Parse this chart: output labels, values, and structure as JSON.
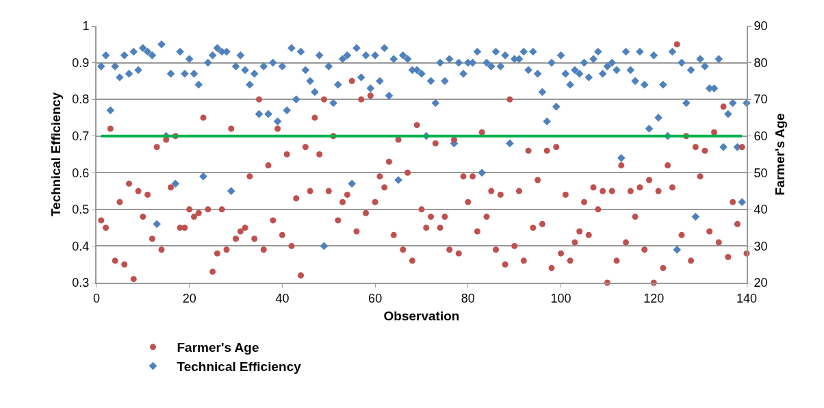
{
  "chart_data": {
    "type": "scatter",
    "xlabel": "Observation",
    "ylabel": "Technical Efficiency",
    "y2label": "Farmer's Age",
    "x": [
      1,
      2,
      3,
      4,
      5,
      6,
      7,
      8,
      9,
      10,
      11,
      12,
      13,
      14,
      15,
      16,
      17,
      18,
      19,
      20,
      21,
      22,
      23,
      24,
      25,
      26,
      27,
      28,
      29,
      30,
      31,
      32,
      33,
      34,
      35,
      36,
      37,
      38,
      39,
      40,
      41,
      42,
      43,
      44,
      45,
      46,
      47,
      48,
      49,
      50,
      51,
      52,
      53,
      54,
      55,
      56,
      57,
      58,
      59,
      60,
      61,
      62,
      63,
      64,
      65,
      66,
      67,
      68,
      69,
      70,
      71,
      72,
      73,
      74,
      75,
      76,
      77,
      78,
      79,
      80,
      81,
      82,
      83,
      84,
      85,
      86,
      87,
      88,
      89,
      90,
      91,
      92,
      93,
      94,
      95,
      96,
      97,
      98,
      99,
      100,
      101,
      102,
      103,
      104,
      105,
      106,
      107,
      108,
      109,
      110,
      111,
      112,
      113,
      114,
      115,
      116,
      117,
      118,
      119,
      120,
      121,
      122,
      123,
      124,
      125,
      126,
      127,
      128,
      129,
      130,
      131,
      132,
      133,
      134,
      135,
      136,
      137,
      138,
      139,
      140
    ],
    "series": [
      {
        "name": "Farmer's Age",
        "color": "#c0504d",
        "marker": "circle",
        "axis": "y2",
        "values": [
          37,
          35,
          62,
          26,
          42,
          25,
          47,
          21,
          45,
          38,
          44,
          32,
          57,
          29,
          59,
          46,
          60,
          35,
          35,
          40,
          38,
          39,
          65,
          40,
          23,
          28,
          40,
          29,
          62,
          32,
          34,
          35,
          49,
          32,
          70,
          29,
          52,
          37,
          62,
          33,
          55,
          30,
          43,
          22,
          57,
          45,
          65,
          55,
          70,
          45,
          60,
          37,
          42,
          44,
          75,
          34,
          70,
          39,
          71,
          42,
          49,
          46,
          53,
          33,
          59,
          29,
          50,
          26,
          63,
          40,
          35,
          38,
          58,
          35,
          38,
          29,
          59,
          28,
          49,
          42,
          49,
          34,
          61,
          38,
          45,
          29,
          44,
          25,
          70,
          30,
          45,
          26,
          56,
          35,
          48,
          36,
          56,
          24,
          57,
          28,
          44,
          26,
          31,
          34,
          42,
          33,
          46,
          40,
          45,
          20,
          45,
          26,
          52,
          31,
          45,
          38,
          46,
          29,
          48,
          20,
          45,
          24,
          52,
          46,
          85,
          33,
          60,
          26,
          57,
          49,
          56,
          34,
          61,
          31,
          68,
          27,
          42,
          36,
          57,
          28
        ]
      },
      {
        "name": "Technical Efficiency",
        "color": "#4f81bd",
        "marker": "diamond",
        "values": [
          0.89,
          0.92,
          0.77,
          0.89,
          0.86,
          0.92,
          0.87,
          0.93,
          0.88,
          0.94,
          0.93,
          0.92,
          0.46,
          0.95,
          0.7,
          0.87,
          0.57,
          0.93,
          0.87,
          0.91,
          0.87,
          0.84,
          0.59,
          0.9,
          0.92,
          0.94,
          0.93,
          0.93,
          0.55,
          0.89,
          0.92,
          0.88,
          0.84,
          0.87,
          0.76,
          0.89,
          0.76,
          0.9,
          0.74,
          0.89,
          0.77,
          0.94,
          0.8,
          0.93,
          0.88,
          0.85,
          0.82,
          0.92,
          0.4,
          0.89,
          0.79,
          0.84,
          0.91,
          0.92,
          0.57,
          0.94,
          0.86,
          0.92,
          0.83,
          0.92,
          0.85,
          0.94,
          0.81,
          0.91,
          0.58,
          0.92,
          0.91,
          0.88,
          0.88,
          0.87,
          0.7,
          0.85,
          0.79,
          0.9,
          0.85,
          0.91,
          0.68,
          0.9,
          0.87,
          0.9,
          0.9,
          0.93,
          0.6,
          0.9,
          0.89,
          0.93,
          0.89,
          0.92,
          0.68,
          0.91,
          0.91,
          0.93,
          0.88,
          0.93,
          0.87,
          0.82,
          0.74,
          0.9,
          0.78,
          0.92,
          0.87,
          0.84,
          0.88,
          0.87,
          0.9,
          0.86,
          0.91,
          0.93,
          0.87,
          0.89,
          0.9,
          0.88,
          0.64,
          0.93,
          0.88,
          0.85,
          0.93,
          0.84,
          0.72,
          0.92,
          0.75,
          0.84,
          0.7,
          0.93,
          0.39,
          0.9,
          0.79,
          0.88,
          0.48,
          0.91,
          0.89,
          0.83,
          0.83,
          0.91,
          0.67,
          0.76,
          0.79,
          0.67,
          0.52,
          0.79
        ]
      }
    ],
    "xlim": [
      0,
      140
    ],
    "xticks": [
      0,
      20,
      40,
      60,
      80,
      100,
      120,
      140
    ],
    "ylim": [
      0.3,
      1
    ],
    "yticks": [
      {
        "value": 0.3,
        "label": "0.3"
      },
      {
        "value": 0.4,
        "label": "0.4"
      },
      {
        "value": 0.5,
        "label": "0.5"
      },
      {
        "value": 0.6,
        "label": "0.6"
      },
      {
        "value": 0.7,
        "label": "0.7"
      },
      {
        "value": 0.8,
        "label": "0.8"
      },
      {
        "value": 0.9,
        "label": "0.9"
      },
      1
    ],
    "y2lim": [
      20,
      90
    ],
    "y2ticks": [
      20,
      30,
      40,
      50,
      60,
      70,
      80,
      90
    ],
    "ref_lines": [
      {
        "axis": "y",
        "value": 0.7,
        "color": "#00b050"
      }
    ],
    "grid": "y",
    "legend": "bottom left"
  }
}
